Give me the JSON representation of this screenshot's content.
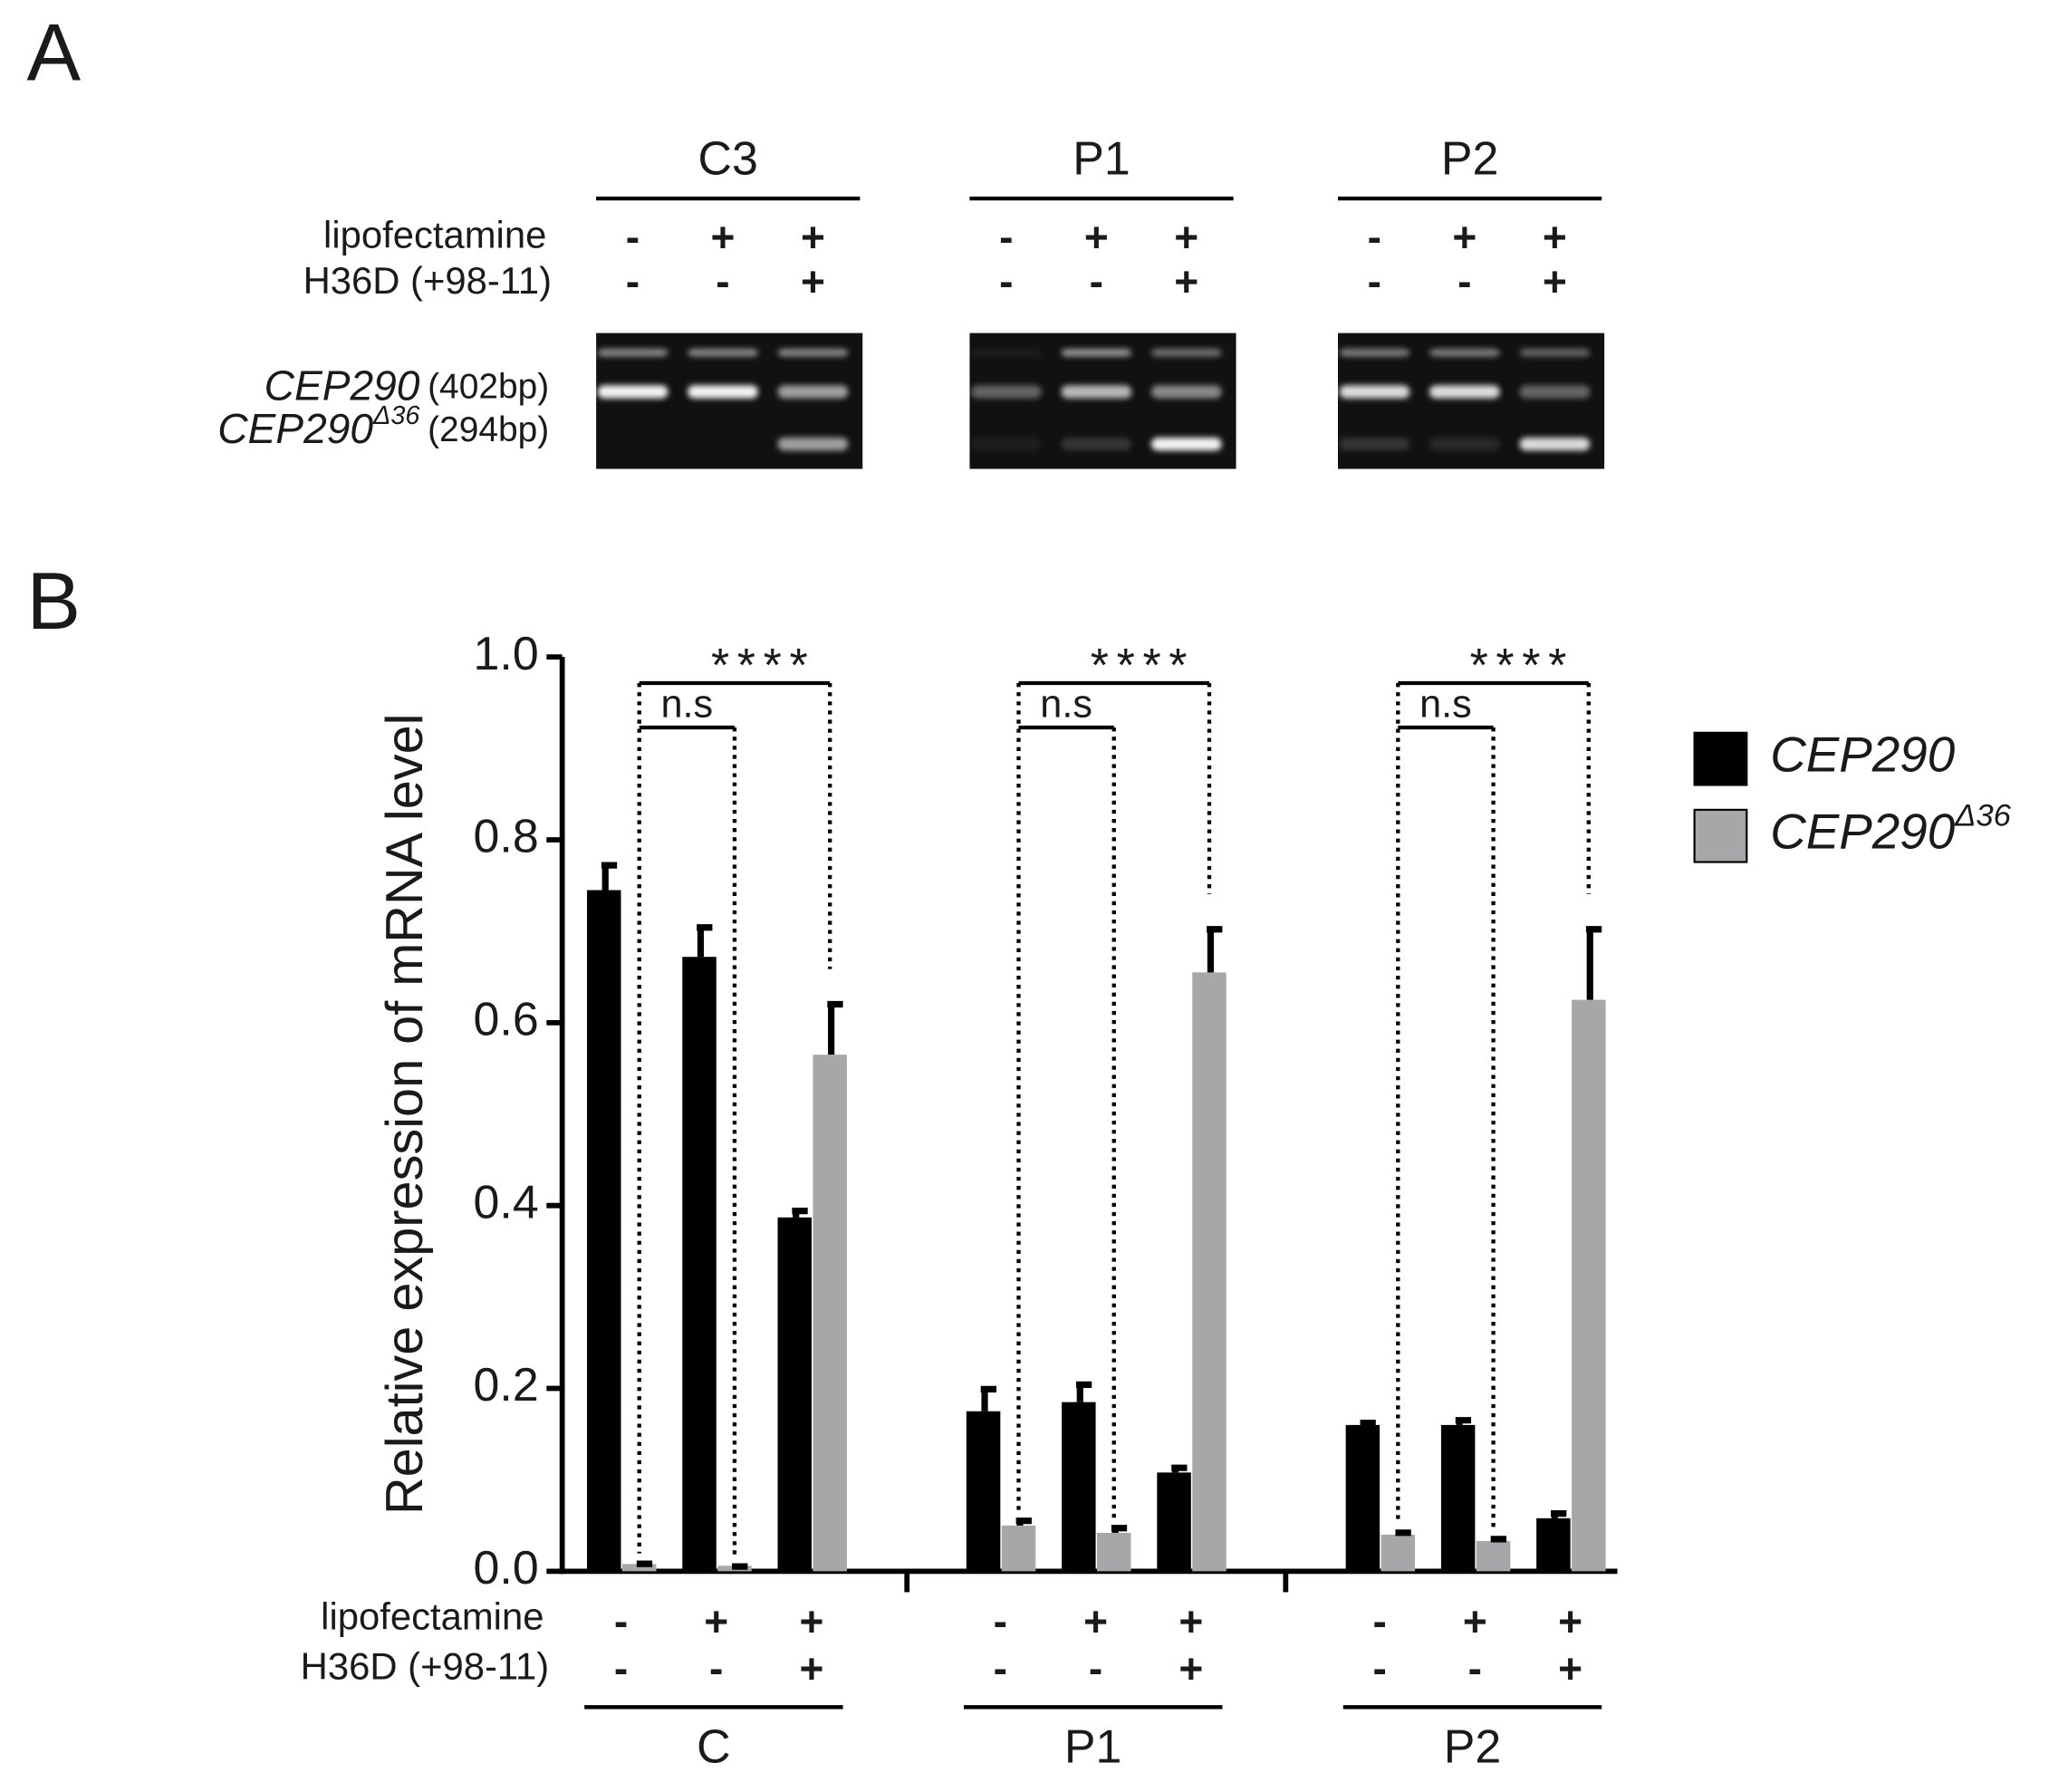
{
  "panel_a": {
    "label": "A",
    "row_labels": [
      "lipofectamine",
      "H36D (+98-11)"
    ],
    "groups": [
      {
        "name": "C3",
        "lipofectamine": [
          "-",
          "+",
          "+"
        ],
        "h36d": [
          "-",
          "-",
          "+"
        ]
      },
      {
        "name": "P1",
        "lipofectamine": [
          "-",
          "+",
          "+"
        ],
        "h36d": [
          "-",
          "-",
          "+"
        ]
      },
      {
        "name": "P2",
        "lipofectamine": [
          "-",
          "+",
          "+"
        ],
        "h36d": [
          "-",
          "-",
          "+"
        ]
      }
    ],
    "bands": [
      {
        "gene": "CEP290",
        "size": "(402bp)"
      },
      {
        "gene": "CEP290",
        "superscript": "Δ36",
        "size": "(294bp)"
      }
    ]
  },
  "panel_b_label": "B",
  "chart_data": {
    "type": "bar",
    "ylabel": "Relative expression of mRNA level",
    "ylim": [
      0,
      1.0
    ],
    "yticks": [
      {
        "value": 0,
        "label": "0.0"
      },
      0.2,
      0.4,
      0.6,
      0.8,
      {
        "value": 1.0,
        "label": "1.0"
      }
    ],
    "row_labels": [
      "lipofectamine",
      "H36D (+98-11)"
    ],
    "groups": [
      {
        "name": "C",
        "lipofectamine": [
          "-",
          "+",
          "+"
        ],
        "h36d": [
          "-",
          "-",
          "+"
        ],
        "annotations": [
          "****",
          "n.s"
        ]
      },
      {
        "name": "P1",
        "lipofectamine": [
          "-",
          "+",
          "+"
        ],
        "h36d": [
          "-",
          "-",
          "+"
        ],
        "annotations": [
          "****",
          "n.s"
        ]
      },
      {
        "name": "P2",
        "lipofectamine": [
          "-",
          "+",
          "+"
        ],
        "h36d": [
          "-",
          "-",
          "+"
        ],
        "annotations": [
          "****",
          "n.s"
        ]
      }
    ],
    "series": [
      {
        "name": "CEP290",
        "color": "#000000",
        "values": [
          0.745,
          0.672,
          0.387,
          0.175,
          0.185,
          0.108,
          0.16,
          0.16,
          0.058
        ],
        "errors": [
          0.03,
          0.035,
          0.01,
          0.027,
          0.022,
          0.008,
          0.005,
          0.008,
          0.008
        ]
      },
      {
        "name": "CEP290",
        "superscript": "Δ36",
        "color": "#a6a7a9",
        "values": [
          0.008,
          0.006,
          0.565,
          0.05,
          0.042,
          0.655,
          0.04,
          0.033,
          0.625
        ],
        "errors": [
          0.003,
          0.002,
          0.058,
          0.008,
          0.008,
          0.05,
          0.005,
          0.005,
          0.08
        ]
      }
    ],
    "legend": "right"
  }
}
